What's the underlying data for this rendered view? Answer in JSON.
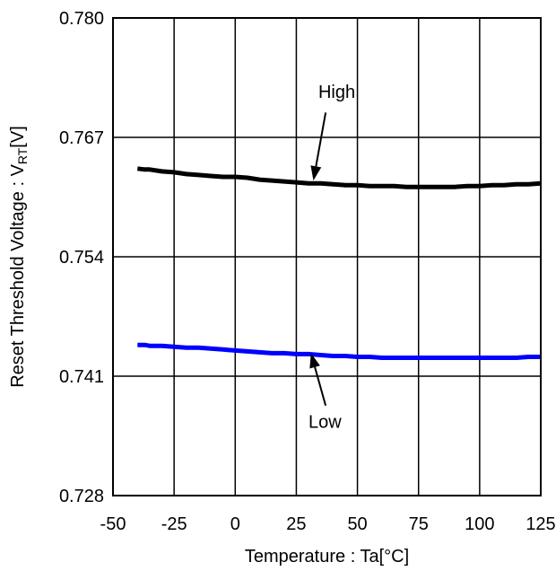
{
  "chart_data": {
    "type": "line",
    "xlabel": "Temperature : Ta[°C]",
    "ylabel_main": "Reset Threshold Voltage : V",
    "ylabel_sub": "RT",
    "ylabel_tail": "[V]",
    "xlim": [
      -50,
      125
    ],
    "ylim": [
      0.728,
      0.78
    ],
    "xticks": [
      -50,
      -25,
      0,
      25,
      50,
      75,
      100,
      125
    ],
    "xtick_labels": [
      "-50",
      "-25",
      "0",
      "25",
      "50",
      "75",
      "100",
      "125"
    ],
    "yticks": [
      0.728,
      0.741,
      0.754,
      0.767,
      0.78
    ],
    "ytick_labels": [
      "0.728",
      "0.741",
      "0.754",
      "0.767",
      "0.780"
    ],
    "grid": true,
    "series": [
      {
        "name": "High",
        "color": "#000000",
        "x": [
          -40,
          -37,
          -35,
          -30,
          -25,
          -20,
          -15,
          -10,
          -5,
          0,
          5,
          10,
          15,
          20,
          25,
          30,
          35,
          40,
          45,
          50,
          55,
          60,
          65,
          70,
          75,
          80,
          85,
          90,
          95,
          100,
          105,
          110,
          115,
          120,
          125
        ],
        "y": [
          0.7636,
          0.7635,
          0.7635,
          0.7633,
          0.7632,
          0.763,
          0.7629,
          0.7628,
          0.7627,
          0.7627,
          0.7626,
          0.7624,
          0.7623,
          0.7622,
          0.7621,
          0.762,
          0.762,
          0.7619,
          0.7618,
          0.7618,
          0.7617,
          0.7617,
          0.7617,
          0.7616,
          0.7616,
          0.7616,
          0.7616,
          0.7616,
          0.7617,
          0.7617,
          0.7618,
          0.7618,
          0.7619,
          0.7619,
          0.762
        ]
      },
      {
        "name": "Low",
        "color": "#0000ff",
        "x": [
          -40,
          -37,
          -35,
          -30,
          -25,
          -20,
          -15,
          -10,
          -5,
          0,
          5,
          10,
          15,
          20,
          25,
          30,
          35,
          40,
          45,
          50,
          55,
          60,
          65,
          70,
          75,
          80,
          85,
          90,
          95,
          100,
          105,
          110,
          115,
          120,
          125
        ],
        "y": [
          0.7444,
          0.7444,
          0.7443,
          0.7443,
          0.7442,
          0.7441,
          0.7441,
          0.744,
          0.7439,
          0.7438,
          0.7437,
          0.7436,
          0.7435,
          0.7435,
          0.7434,
          0.7434,
          0.7433,
          0.7432,
          0.7432,
          0.7431,
          0.7431,
          0.743,
          0.743,
          0.743,
          0.743,
          0.743,
          0.743,
          0.743,
          0.743,
          0.743,
          0.743,
          0.743,
          0.743,
          0.7431,
          0.7431
        ]
      }
    ],
    "annotations": [
      {
        "text": "High",
        "series": "High"
      },
      {
        "text": "Low",
        "series": "Low"
      }
    ]
  }
}
